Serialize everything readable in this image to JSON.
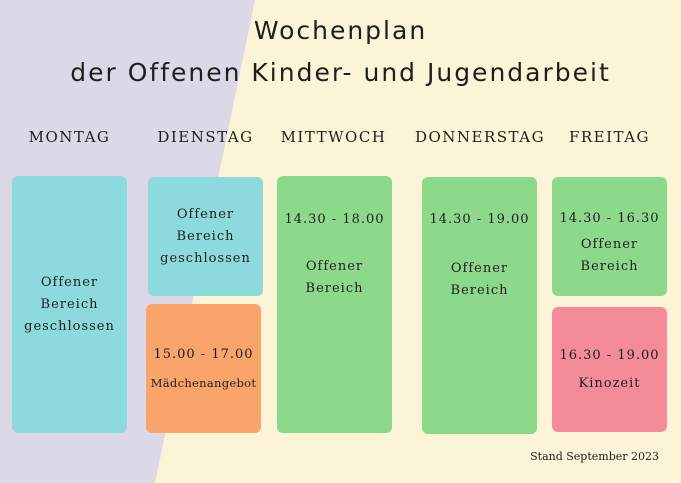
{
  "title": {
    "line1": "Wochenplan",
    "line2": "der Offenen Kinder- und Jugendarbeit"
  },
  "days": [
    "MONTAG",
    "DIENSTAG",
    "MITTWOCH",
    "DONNERSTAG",
    "FREITAG"
  ],
  "blocks": {
    "montag": {
      "label1": "Offener",
      "label2": "Bereich",
      "label3": "geschlossen"
    },
    "dienstag_1": {
      "label1": "Offener",
      "label2": "Bereich",
      "label3": "geschlossen"
    },
    "dienstag_2": {
      "time": "15.00 - 17.00",
      "label": "Mädchenangebot"
    },
    "mittwoch": {
      "time": "14.30 - 18.00",
      "label1": "Offener",
      "label2": "Bereich"
    },
    "donnerstag": {
      "time": "14.30 - 19.00",
      "label1": "Offener",
      "label2": "Bereich"
    },
    "freitag_1": {
      "time": "14.30 - 16.30",
      "label1": "Offener",
      "label2": "Bereich"
    },
    "freitag_2": {
      "time": "16.30 - 19.00",
      "label": "Kinozeit"
    }
  },
  "colors": {
    "closed": "#8ddadd",
    "girls": "#f9a46a",
    "open": "#8cd98b",
    "cinema": "#f38b98"
  },
  "footer": {
    "stand": "Stand September 2023"
  }
}
